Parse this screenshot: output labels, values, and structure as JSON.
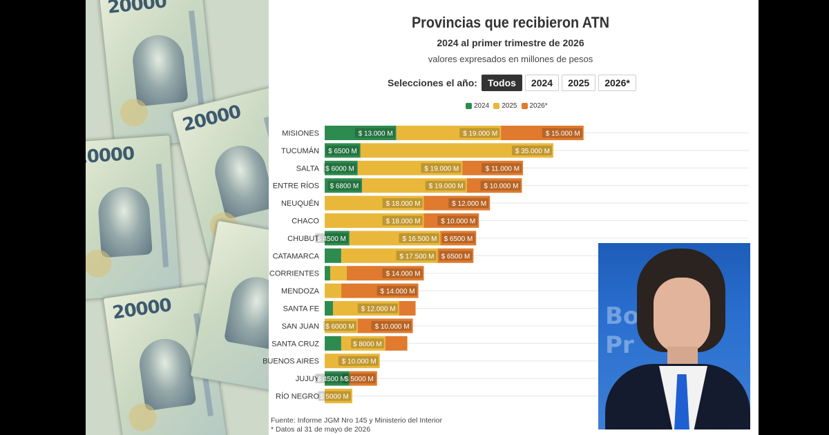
{
  "colors": {
    "y2024": "#2e8b4f",
    "y2025": "#e9b83b",
    "y2026": "#e07a2e",
    "grid": "#e5e5e5"
  },
  "header": {
    "title": "Provincias que recibieron ATN",
    "subtitle": "2024 al primer trimestre de 2026",
    "note": "valores expresados en millones de pesos"
  },
  "year_selector": {
    "label": "Selecciones el año:",
    "options": [
      "Todos",
      "2024",
      "2025",
      "2026*"
    ],
    "selected": "Todos"
  },
  "legend": [
    "2024",
    "2025",
    "2026*"
  ],
  "chart_data": {
    "type": "bar",
    "orientation": "horizontal",
    "stacked": true,
    "unit": "millones de pesos",
    "xlim": [
      0,
      77000
    ],
    "grid": true,
    "legend_position": "top",
    "categories": [
      "MISIONES",
      "TUCUMÁN",
      "SALTA",
      "ENTRE RÍOS",
      "NEUQUÉN",
      "CHACO",
      "CHUBUT",
      "CATAMARCA",
      "CORRIENTES",
      "MENDOZA",
      "SANTA FE",
      "SAN JUAN",
      "SANTA CRUZ",
      "BUENOS AIRES",
      "JUJUY",
      "RÍO NEGRO"
    ],
    "series": [
      {
        "name": "2024",
        "values": [
          13000,
          6500,
          6000,
          6800,
          0,
          0,
          4500,
          3000,
          1000,
          0,
          1500,
          0,
          3000,
          0,
          4500,
          0
        ],
        "labels": [
          "$ 13.000 M",
          "$ 6500 M",
          "$ 6000 M",
          "$ 6800 M",
          "",
          "",
          "$ 4500 M",
          "",
          "",
          "",
          "",
          "",
          "",
          "",
          "$ 4500 M",
          ""
        ]
      },
      {
        "name": "2025",
        "values": [
          19000,
          35000,
          19000,
          19000,
          18000,
          18000,
          16500,
          17500,
          3000,
          3000,
          12000,
          6000,
          8000,
          10000,
          0,
          5000
        ],
        "labels": [
          "$ 19.000 M",
          "$ 35.000 M",
          "$ 19.000 M",
          "$ 19.000 M",
          "$ 18.000 M",
          "$ 18.000 M",
          "$ 16.500 M",
          "$ 17.500 M",
          "",
          "",
          "$ 12.000 M",
          "$ 6000 M",
          "$ 8000 M",
          "$ 10.000 M",
          "",
          "$ 5000 M"
        ]
      },
      {
        "name": "2026*",
        "values": [
          15000,
          0,
          11000,
          10000,
          12000,
          10000,
          6500,
          6500,
          14000,
          14000,
          3000,
          10000,
          4000,
          0,
          5000,
          0
        ],
        "labels": [
          "$ 15.000 M",
          "",
          "$ 11.000 M",
          "$ 10.000 M",
          "$ 12.000 M",
          "$ 10.000 M",
          "$ 6500 M",
          "$ 6500 M",
          "$ 14.000 M",
          "$ 14.000 M",
          "",
          "$ 10.000 M",
          "",
          "",
          "$ 5000 M",
          ""
        ]
      }
    ]
  },
  "footer": {
    "source": "Fuente: Informe JGM Nro 145 y Ministerio del Interior",
    "footnote": "* Datos al 31 de mayo de 2026"
  }
}
